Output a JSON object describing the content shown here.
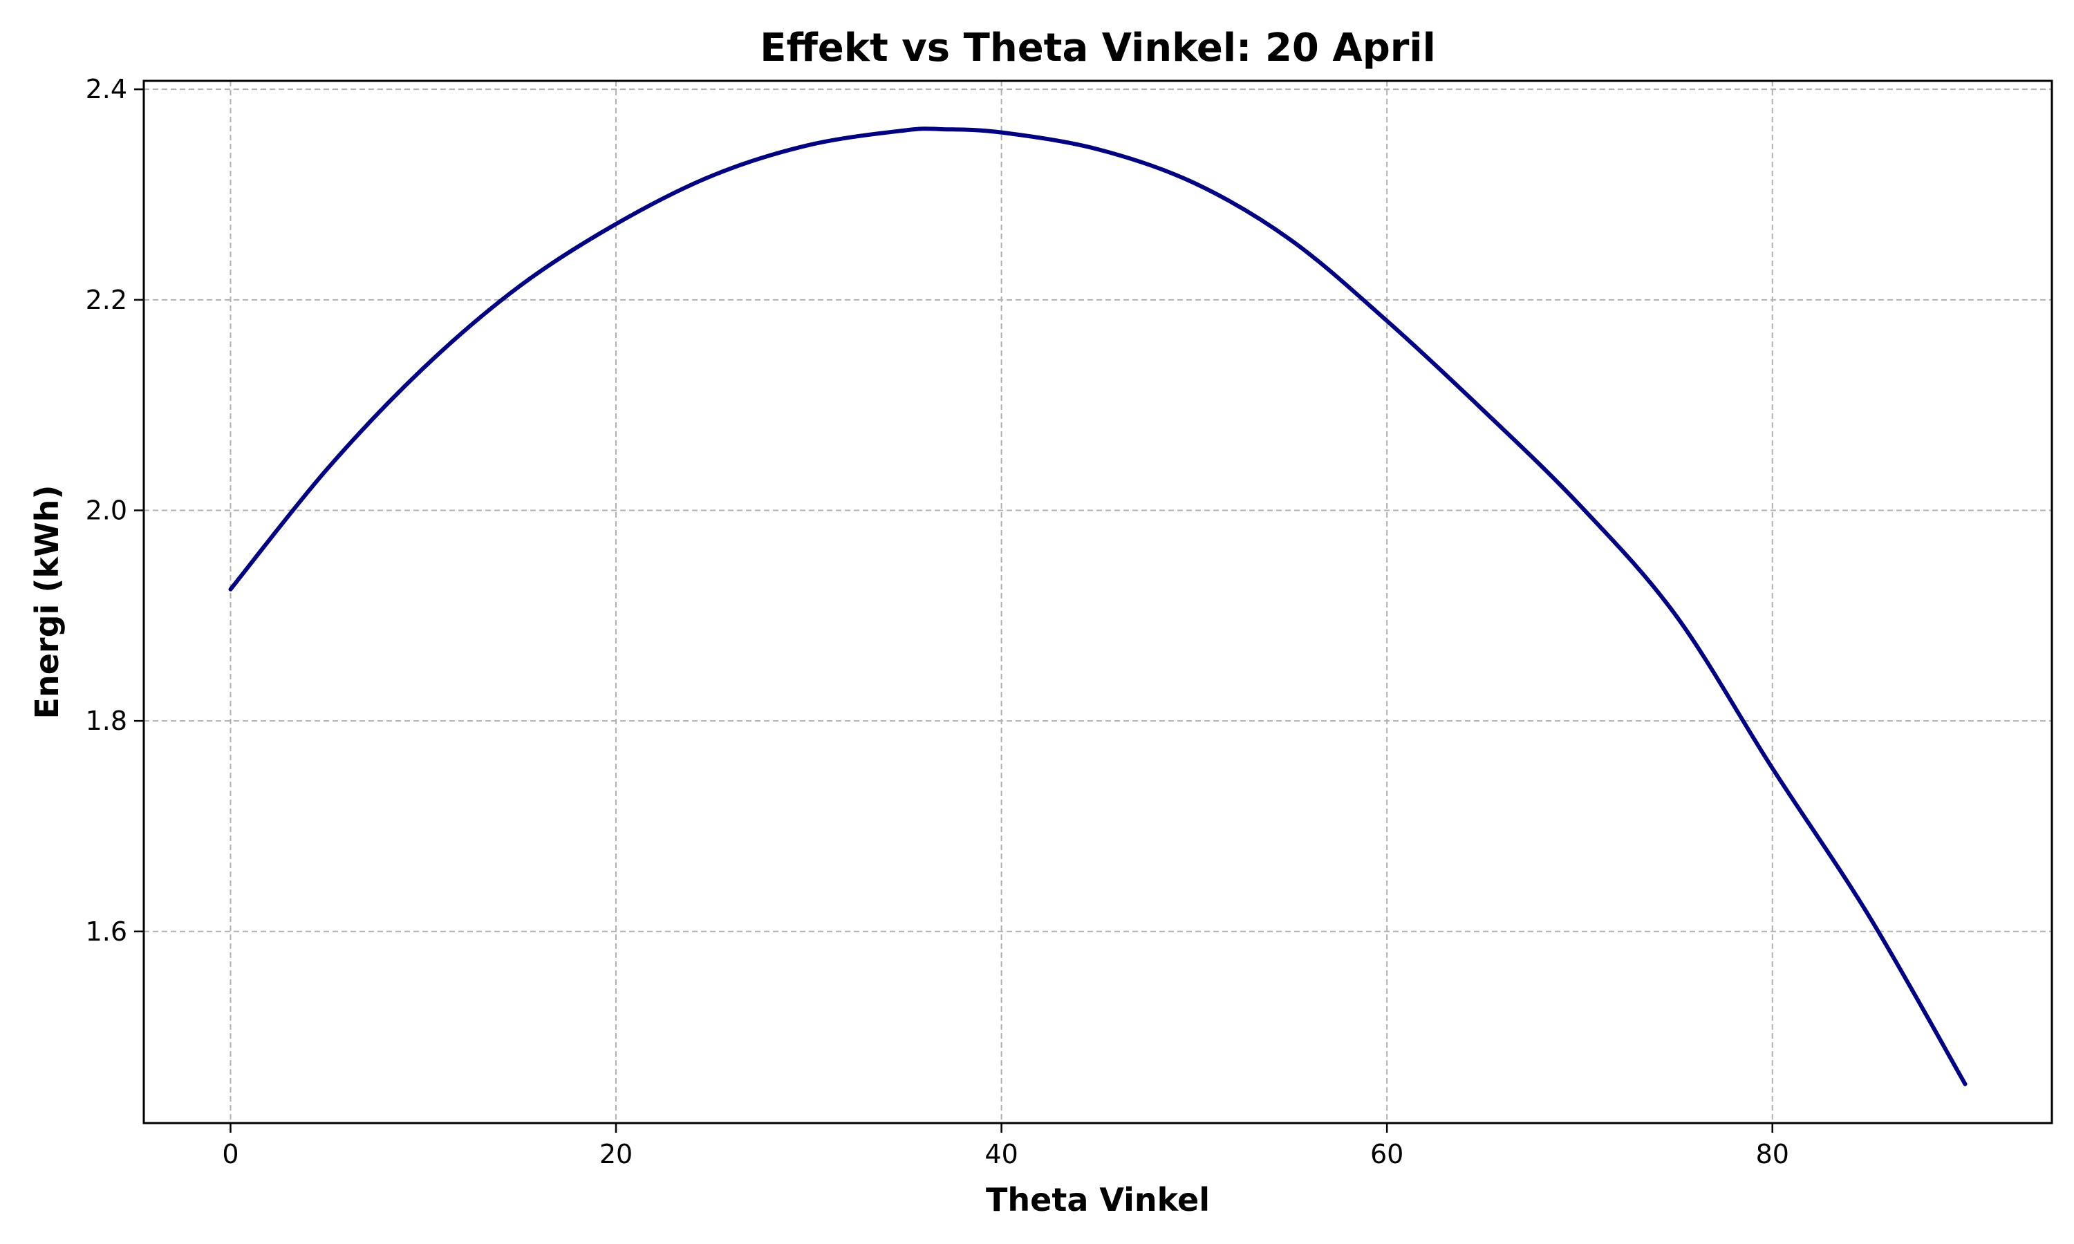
{
  "chart_data": {
    "type": "line",
    "title": "Effekt vs Theta Vinkel: 20 April",
    "xlabel": "Theta Vinkel",
    "ylabel": "Energi (kWh)",
    "xlim": [
      -4.5,
      94.5
    ],
    "ylim": [
      1.418,
      2.408
    ],
    "xticks": [
      0,
      20,
      40,
      60,
      80
    ],
    "xtick_labels": [
      "0",
      "20",
      "40",
      "60",
      "80"
    ],
    "yticks": [
      1.6,
      1.8,
      2.0,
      2.2,
      2.4
    ],
    "ytick_labels": [
      "1.6",
      "1.8",
      "2.0",
      "2.2",
      "2.4"
    ],
    "grid": true,
    "legend": "none",
    "series": [
      {
        "color": "#000080",
        "x": [
          0,
          5,
          10,
          15,
          20,
          25,
          30,
          35,
          37,
          40,
          45,
          50,
          55,
          60,
          65,
          70,
          75,
          80,
          85,
          90
        ],
        "y": [
          1.925,
          2.039,
          2.135,
          2.213,
          2.272,
          2.318,
          2.347,
          2.361,
          2.362,
          2.359,
          2.343,
          2.311,
          2.257,
          2.18,
          2.095,
          2.005,
          1.9,
          1.755,
          1.615,
          1.455
        ]
      }
    ]
  }
}
